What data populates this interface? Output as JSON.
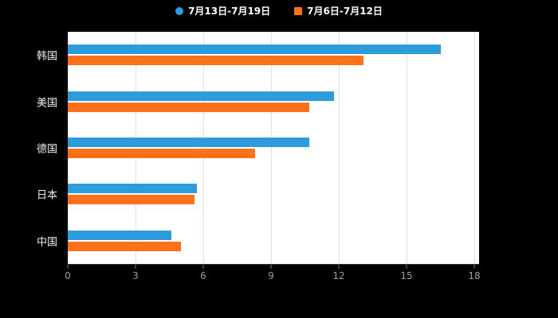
{
  "legend": {
    "items": [
      {
        "label": "7月13日-7月19日",
        "color": "#2D9CDB",
        "marker": "circle"
      },
      {
        "label": "7月6日-7月12日",
        "color": "#FF7119",
        "marker": "square"
      }
    ]
  },
  "chart_data": {
    "type": "bar",
    "orientation": "horizontal",
    "title": "",
    "xlabel": "",
    "ylabel": "",
    "categories": [
      "韩国",
      "美国",
      "德国",
      "日本",
      "中国"
    ],
    "series": [
      {
        "name": "7月13日-7月19日",
        "color": "#2D9CDB",
        "values": [
          16.5,
          11.8,
          10.7,
          5.7,
          4.6
        ]
      },
      {
        "name": "7月6日-7月12日",
        "color": "#FF7119",
        "values": [
          13.1,
          10.7,
          8.3,
          5.6,
          5.0
        ]
      }
    ],
    "xlim": [
      0,
      18
    ],
    "x_ticks": [
      0,
      3,
      6,
      9,
      12,
      15,
      18
    ],
    "grid": true,
    "gridline_color": "#e2e2e2",
    "plot_background": "#ffffff",
    "page_background": "#000000",
    "legend_position": "top"
  }
}
